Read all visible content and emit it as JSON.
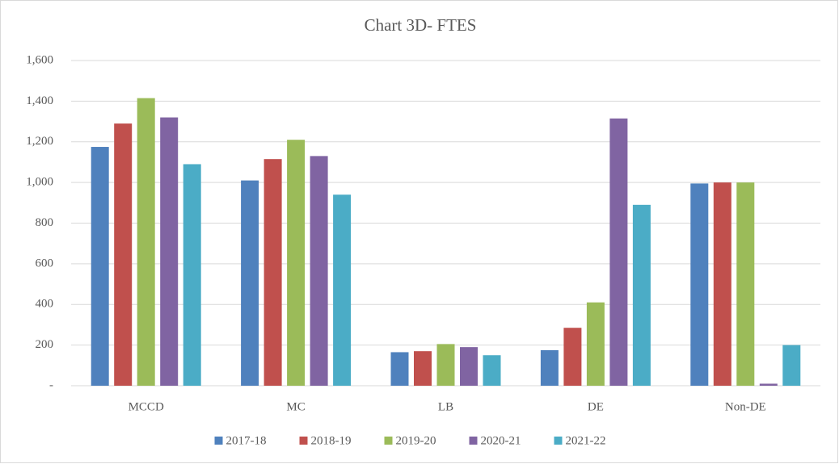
{
  "chart_data": {
    "type": "bar",
    "title": "Chart 3D- FTES",
    "categories": [
      "MCCD",
      "MC",
      "LB",
      "DE",
      "Non-DE"
    ],
    "series": [
      {
        "name": "2017-18",
        "color": "#4f81bd",
        "values": [
          1175,
          1010,
          165,
          175,
          995
        ]
      },
      {
        "name": "2018-19",
        "color": "#c0504d",
        "values": [
          1290,
          1115,
          170,
          285,
          1000
        ]
      },
      {
        "name": "2019-20",
        "color": "#9bbb59",
        "values": [
          1415,
          1210,
          205,
          410,
          1000
        ]
      },
      {
        "name": "2020-21",
        "color": "#8064a2",
        "values": [
          1320,
          1130,
          190,
          1315,
          10
        ]
      },
      {
        "name": "2021-22",
        "color": "#4bacc6",
        "values": [
          1090,
          940,
          150,
          890,
          200
        ]
      }
    ],
    "ylim": [
      0,
      1600
    ],
    "yticks": [
      {
        "value": 0,
        "label": "-"
      },
      200,
      400,
      600,
      800,
      {
        "value": 1000,
        "label": "1,000"
      },
      {
        "value": 1200,
        "label": "1,200"
      },
      {
        "value": 1400,
        "label": "1,400"
      },
      {
        "value": 1600,
        "label": "1,600"
      }
    ],
    "grid": true,
    "legend": "bottom"
  }
}
